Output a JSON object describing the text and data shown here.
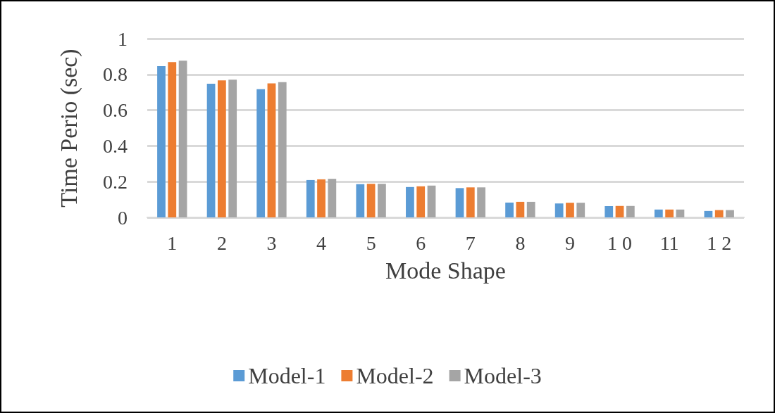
{
  "chart_data": {
    "type": "bar",
    "xlabel": "Mode Shape",
    "ylabel": "Time Perio (sec)",
    "categories": [
      "1",
      "2",
      "3",
      "4",
      "5",
      "6",
      "7",
      "8",
      "9",
      "1 0",
      "11",
      "1 2"
    ],
    "series": [
      {
        "name": "Model-1",
        "color": "#5b9bd5",
        "values": [
          0.846,
          0.748,
          0.718,
          0.209,
          0.186,
          0.17,
          0.164,
          0.083,
          0.078,
          0.063,
          0.044,
          0.036
        ]
      },
      {
        "name": "Model-2",
        "color": "#ed7d31",
        "values": [
          0.869,
          0.767,
          0.75,
          0.213,
          0.188,
          0.174,
          0.168,
          0.087,
          0.082,
          0.064,
          0.044,
          0.041
        ]
      },
      {
        "name": "Model-3",
        "color": "#a5a5a5",
        "values": [
          0.877,
          0.771,
          0.757,
          0.216,
          0.188,
          0.178,
          0.168,
          0.087,
          0.082,
          0.064,
          0.044,
          0.041
        ]
      }
    ],
    "ylim": [
      0,
      1
    ],
    "yticks": [
      0,
      0.2,
      0.4,
      0.6,
      0.8,
      1
    ],
    "grid": "y",
    "legend": "bottom"
  }
}
